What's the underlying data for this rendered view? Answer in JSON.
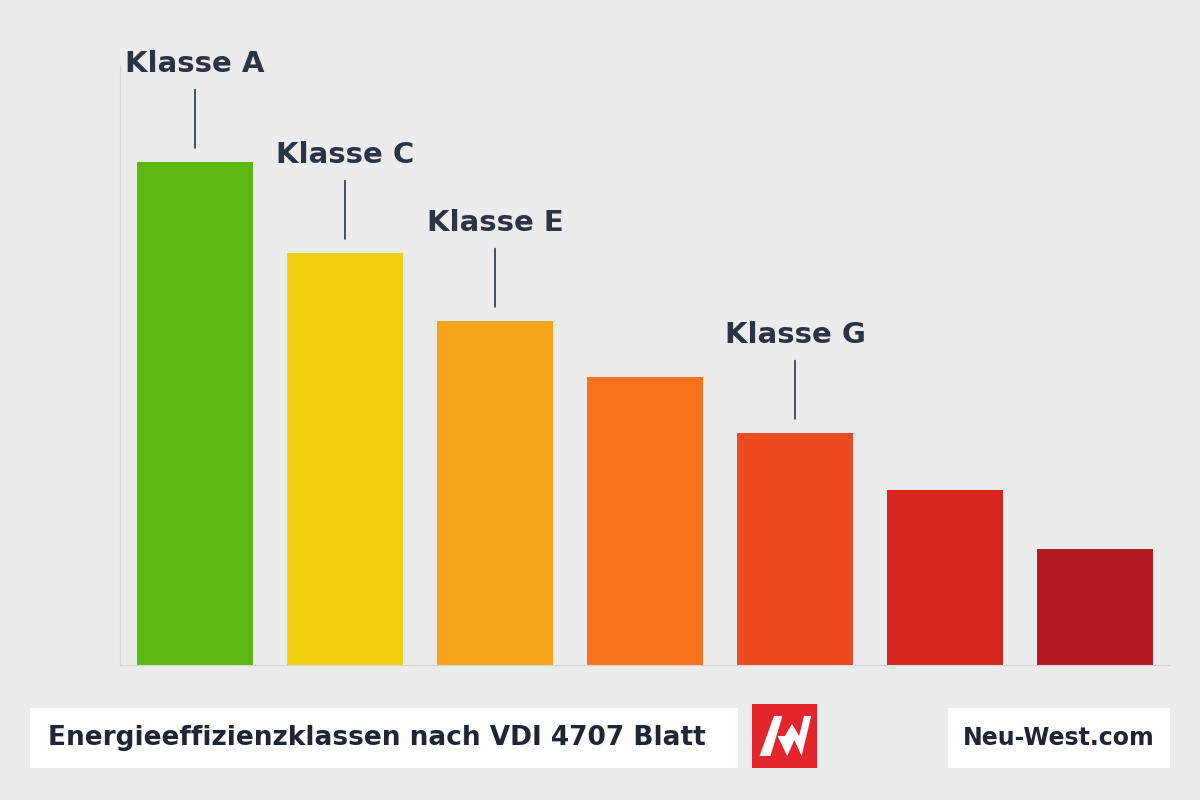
{
  "chart_data": {
    "type": "bar",
    "categories": [
      "Klasse A",
      "Klasse C",
      "Klasse E",
      null,
      "Klasse G",
      null,
      null
    ],
    "values": [
      503,
      412,
      344,
      288,
      232,
      175,
      116
    ],
    "colors": [
      "#5cb811",
      "#f2cf0f",
      "#f5a41c",
      "#f7741c",
      "#ee4a1f",
      "#d8261f",
      "#b21c1f"
    ],
    "ylim": [
      0,
      600
    ],
    "yticks": [],
    "grid": false,
    "tick_labels": false,
    "footer": {
      "caption": "Energieeffizienzklassen nach VDI 4707 Blatt",
      "site": "Neu-West.com"
    }
  }
}
